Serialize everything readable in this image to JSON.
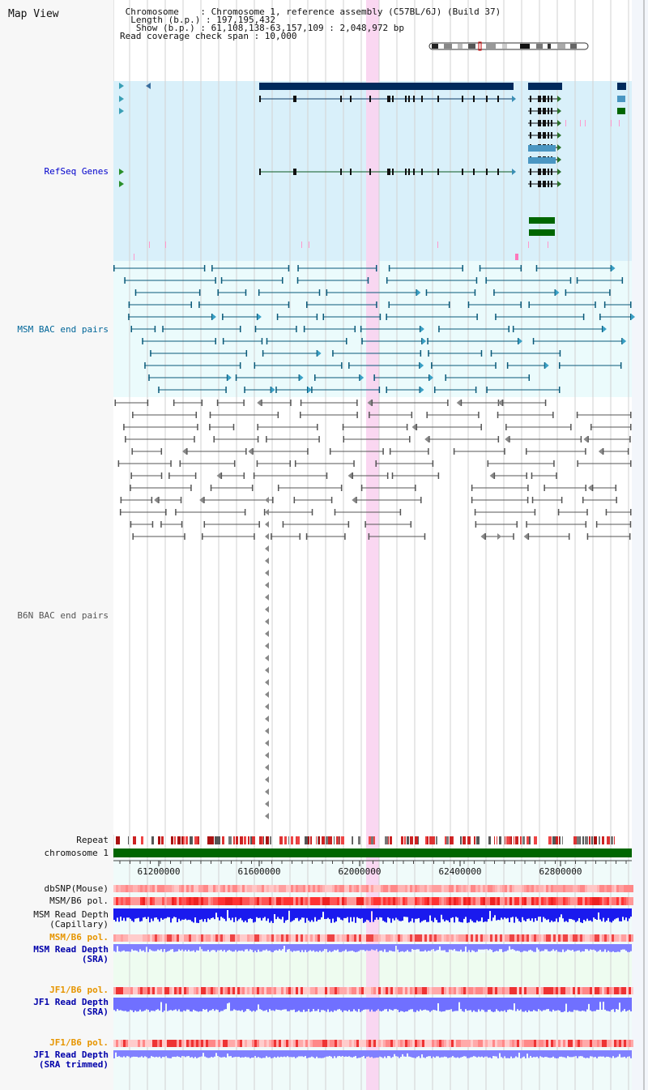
{
  "page": {
    "title": "Map View"
  },
  "header": {
    "lines": [
      " Chromosome    : Chromosome 1, reference assembly (C57BL/6J) (Build 37)",
      "  Length (b.p.) : 197,195,432",
      "   Show (b.p.) : 61,108,138-63,157,109 : 2,048,972 bp",
      "Read coverage check span : 10,000"
    ]
  },
  "tracks": {
    "refseq": "RefSeq Genes",
    "msm_bac": "MSM BAC end pairs",
    "b6n_bac": "B6N BAC end pairs",
    "repeat": "Repeat",
    "chromosome": "chromosome 1",
    "dbsnp": "dbSNP(Mouse)",
    "msm_b6_pol": "MSM/B6 pol.",
    "msm_depth_cap_1": "MSM Read Depth",
    "msm_depth_cap_2": "(Capillary)",
    "msm_b6_pol_2": "MSM/B6 pol.",
    "msm_depth_sra_1": "MSM Read Depth",
    "msm_depth_sra_2": "(SRA)",
    "jf1_b6_pol": "JF1/B6 pol.",
    "jf1_depth_sra_1": "JF1 Read Depth",
    "jf1_depth_sra_2": "(SRA)",
    "jf1_b6_pol_2": "JF1/B6 pol.",
    "jf1_depth_trim_1": "JF1 Read Depth",
    "jf1_depth_trim_2": "(SRA trimmed)"
  },
  "axis": {
    "ticks": [
      "61200000",
      "61600000",
      "62000000",
      "62400000",
      "62800000"
    ]
  },
  "colors": {
    "refseq_bg": "#d9f0fa",
    "msm_bg": "#ebfbfc",
    "highlight": "#f9d3ef",
    "refseq_label": "#0000cc",
    "msm_label": "#006699",
    "b6n_label": "#555555",
    "pol_label": "#e69500",
    "depth_label": "#0000aa",
    "chromosome_bar": "#006600"
  }
}
